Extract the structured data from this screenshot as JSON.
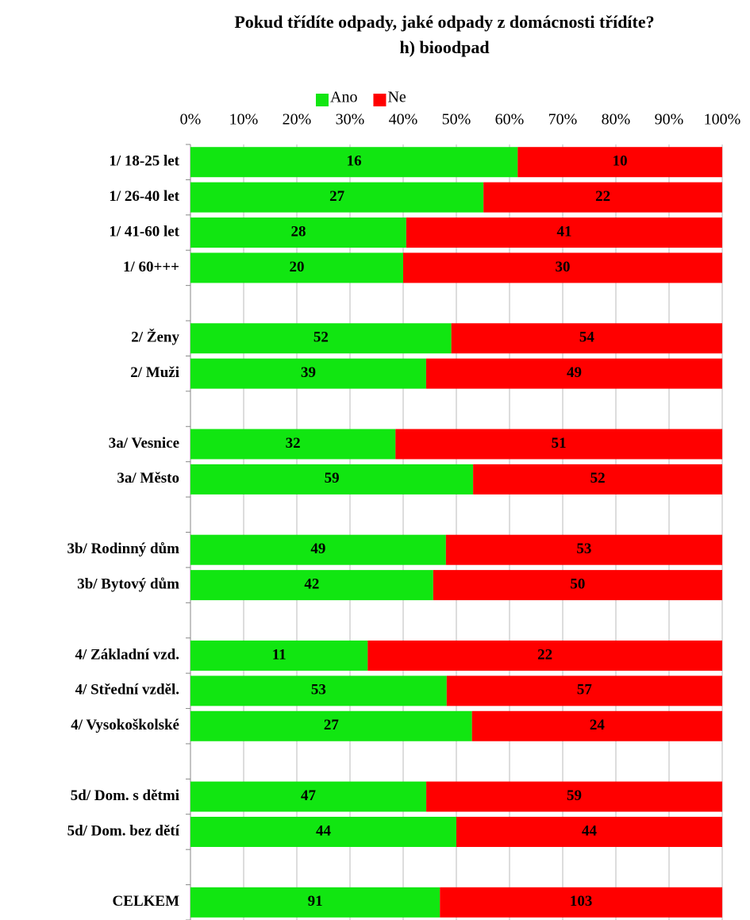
{
  "chart_data": {
    "type": "bar",
    "orientation": "horizontal",
    "stack": "percent",
    "title": "Pokud třídíte odpady, jaké odpady z domácnosti třídíte?",
    "subtitle": "h) bioodpad",
    "categories": [
      "1/ 18-25 let",
      "1/ 26-40 let",
      "1/ 41-60 let",
      "1/ 60+++",
      null,
      "2/ Ženy",
      "2/ Muži",
      null,
      "3a/ Vesnice",
      "3a/ Město",
      null,
      "3b/ Rodinný dům",
      "3b/ Bytový dům",
      null,
      "4/ Základní vzd.",
      "4/ Střední vzděl.",
      "4/ Vysokoškolské",
      null,
      "5d/ Dom. s dětmi",
      "5d/ Dom. bez dětí",
      null,
      "CELKEM"
    ],
    "series": [
      {
        "name": "Ano",
        "color": "#11e611",
        "values": [
          16,
          27,
          28,
          20,
          null,
          52,
          39,
          null,
          32,
          59,
          null,
          49,
          42,
          null,
          11,
          53,
          27,
          null,
          47,
          44,
          null,
          91
        ]
      },
      {
        "name": "Ne",
        "color": "#ff0000",
        "values": [
          10,
          22,
          41,
          30,
          null,
          54,
          49,
          null,
          51,
          52,
          null,
          53,
          50,
          null,
          22,
          57,
          24,
          null,
          59,
          44,
          null,
          103
        ]
      }
    ],
    "xlim": [
      0,
      100
    ],
    "xticks": [
      {
        "value": 0,
        "label": "0%"
      },
      {
        "value": 10,
        "label": "10%"
      },
      {
        "value": 20,
        "label": "20%"
      },
      {
        "value": 30,
        "label": "30%"
      },
      {
        "value": 40,
        "label": "40%"
      },
      {
        "value": 50,
        "label": "50%"
      },
      {
        "value": 60,
        "label": "60%"
      },
      {
        "value": 70,
        "label": "70%"
      },
      {
        "value": 80,
        "label": "80%"
      },
      {
        "value": 90,
        "label": "90%"
      },
      {
        "value": 100,
        "label": "100%"
      }
    ],
    "grid": true,
    "legend": "top"
  }
}
